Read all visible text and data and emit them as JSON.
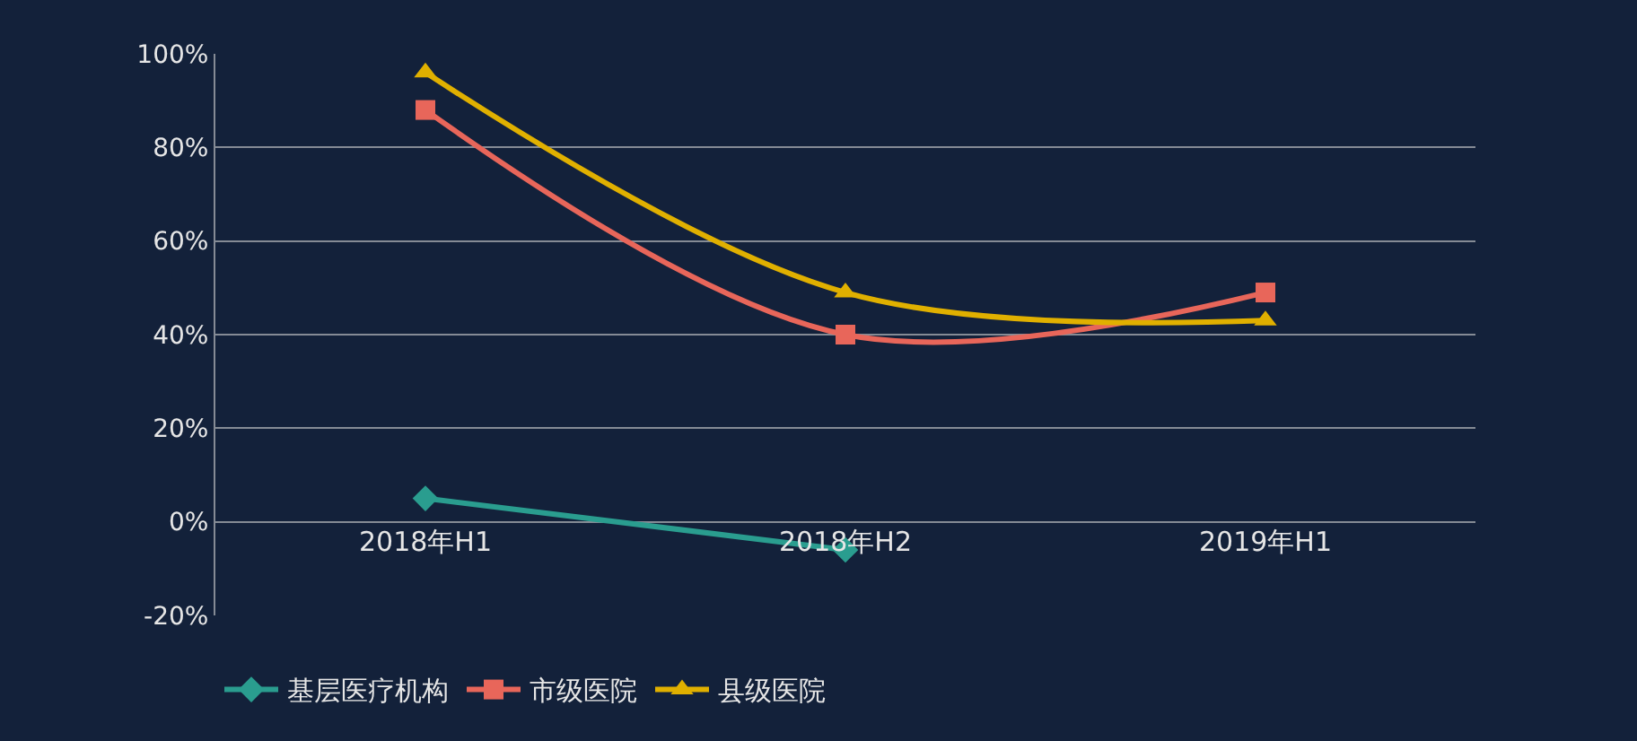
{
  "chart_data": {
    "type": "line",
    "categories": [
      "2018年H1",
      "2018年H2",
      "2019年H1"
    ],
    "series": [
      {
        "name": "基层医疗机构",
        "color": "#2a9d8f",
        "marker": "diamond",
        "values": [
          5,
          -6,
          null
        ]
      },
      {
        "name": "市级医院",
        "color": "#e8665a",
        "marker": "square",
        "values": [
          88,
          40,
          49
        ]
      },
      {
        "name": "县级医院",
        "color": "#e0b000",
        "marker": "triangle",
        "values": [
          96,
          49,
          43
        ]
      }
    ],
    "ylim": [
      -20,
      100
    ],
    "yticks": [
      {
        "value": -20,
        "label": "-20%"
      },
      {
        "value": 0,
        "label": "0%"
      },
      {
        "value": 20,
        "label": "20%"
      },
      {
        "value": 40,
        "label": "40%"
      },
      {
        "value": 60,
        "label": "60%"
      },
      {
        "value": 80,
        "label": "80%"
      },
      {
        "value": 100,
        "label": "100%"
      }
    ],
    "grid": "y",
    "legend": "bottom left",
    "line_style": "solid"
  }
}
